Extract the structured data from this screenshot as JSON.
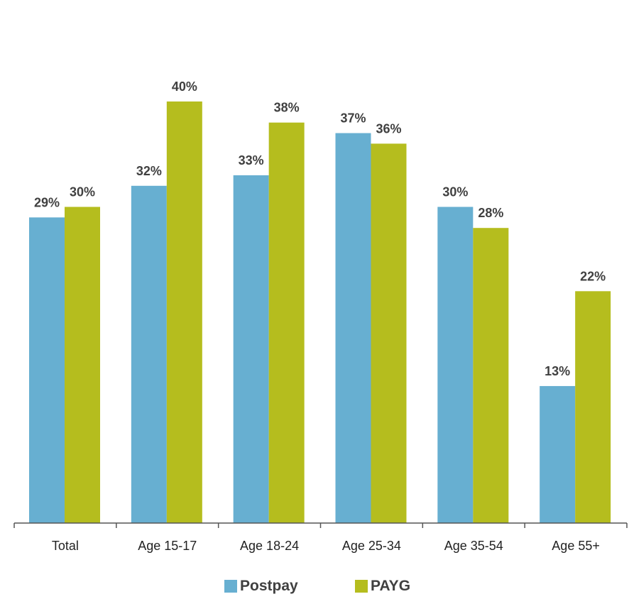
{
  "chart_data": {
    "type": "bar",
    "categories": [
      "Total",
      "Age 15-17",
      "Age 18-24",
      "Age 25-34",
      "Age 35-54",
      "Age 55+"
    ],
    "series": [
      {
        "name": "Postpay",
        "color": "#67AFD1",
        "values": [
          29,
          32,
          33,
          37,
          30,
          13
        ],
        "labels": [
          "29%",
          "32%",
          "33%",
          "37%",
          "30%",
          "13%"
        ]
      },
      {
        "name": "PAYG",
        "color": "#B5BD1E",
        "values": [
          30,
          40,
          38,
          36,
          28,
          22
        ],
        "labels": [
          "30%",
          "40%",
          "38%",
          "36%",
          "28%",
          "22%"
        ]
      }
    ],
    "ylim": [
      0,
      40
    ],
    "grid": false,
    "legend_position": "bottom"
  }
}
